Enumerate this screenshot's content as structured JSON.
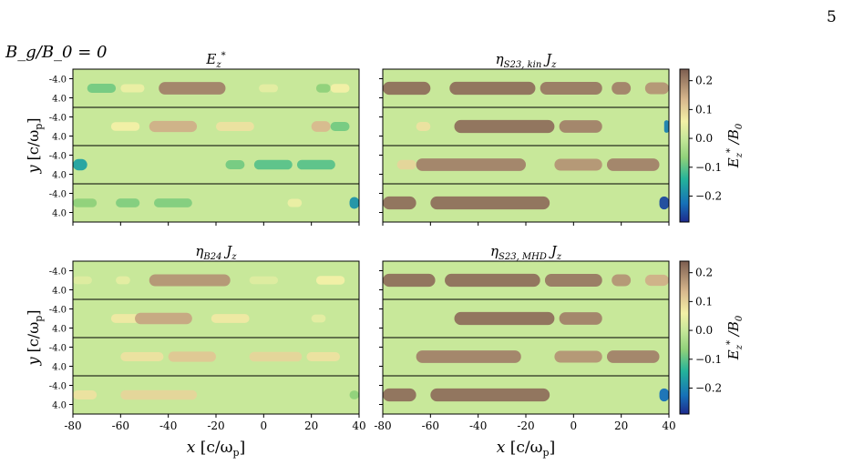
{
  "page": {
    "number": "5",
    "case_label": "B_g/B_0 = 0"
  },
  "chart_data": [
    {
      "type": "heatmap",
      "title": "E_z^*",
      "x": {
        "range": [
          -80,
          40
        ],
        "ticks": [
          -80,
          -60,
          -40,
          -20,
          0,
          20,
          40
        ],
        "label": ""
      },
      "ylabel": "y [c/ω_p]",
      "ytick_labels": [
        "-4.0",
        "4.0"
      ],
      "strips": 4,
      "features": [
        [
          {
            "x0": -74,
            "x1": -62,
            "v": -0.08
          },
          {
            "x0": -60,
            "x1": -50,
            "v": 0.05
          },
          {
            "x0": -44,
            "x1": -16,
            "v": 0.2
          },
          {
            "x0": -2,
            "x1": 6,
            "v": 0.04
          },
          {
            "x0": 22,
            "x1": 28,
            "v": -0.06
          },
          {
            "x0": 28,
            "x1": 36,
            "v": 0.06
          }
        ],
        [
          {
            "x0": -64,
            "x1": -52,
            "v": 0.06
          },
          {
            "x0": -48,
            "x1": -28,
            "v": 0.15
          },
          {
            "x0": -20,
            "x1": -4,
            "v": 0.08
          },
          {
            "x0": 20,
            "x1": 28,
            "v": 0.14
          },
          {
            "x0": 28,
            "x1": 36,
            "v": -0.08
          }
        ],
        [
          {
            "x0": -80,
            "x1": -74,
            "v": -0.16
          },
          {
            "x0": -16,
            "x1": -8,
            "v": -0.08
          },
          {
            "x0": -4,
            "x1": 12,
            "v": -0.1
          },
          {
            "x0": 14,
            "x1": 30,
            "v": -0.1
          }
        ],
        [
          {
            "x0": -80,
            "x1": -70,
            "v": -0.06
          },
          {
            "x0": -62,
            "x1": -52,
            "v": -0.07
          },
          {
            "x0": -46,
            "x1": -30,
            "v": -0.07
          },
          {
            "x0": 10,
            "x1": 16,
            "v": 0.05
          },
          {
            "x0": 36,
            "x1": 40,
            "v": -0.18
          }
        ]
      ]
    },
    {
      "type": "heatmap",
      "title": "η_{S23, kin} J_z",
      "x": {
        "range": [
          -80,
          40
        ],
        "ticks": [
          -80,
          -60,
          -40,
          -20,
          0,
          20,
          40
        ],
        "label": ""
      },
      "features": [
        [
          {
            "x0": -80,
            "x1": -60,
            "v": 0.22
          },
          {
            "x0": -52,
            "x1": -16,
            "v": 0.22
          },
          {
            "x0": -14,
            "x1": 12,
            "v": 0.21
          },
          {
            "x0": 16,
            "x1": 24,
            "v": 0.2
          },
          {
            "x0": 30,
            "x1": 40,
            "v": 0.18
          }
        ],
        [
          {
            "x0": -66,
            "x1": -60,
            "v": 0.08
          },
          {
            "x0": -50,
            "x1": -8,
            "v": 0.22
          },
          {
            "x0": -6,
            "x1": 12,
            "v": 0.2
          },
          {
            "x0": 38,
            "x1": 40,
            "v": -0.2
          }
        ],
        [
          {
            "x0": -74,
            "x1": -66,
            "v": 0.1
          },
          {
            "x0": -66,
            "x1": -20,
            "v": 0.2
          },
          {
            "x0": -8,
            "x1": 12,
            "v": 0.18
          },
          {
            "x0": 14,
            "x1": 36,
            "v": 0.2
          }
        ],
        [
          {
            "x0": -80,
            "x1": -66,
            "v": 0.22
          },
          {
            "x0": -60,
            "x1": -10,
            "v": 0.22
          },
          {
            "x0": 36,
            "x1": 40,
            "v": -0.26
          }
        ]
      ]
    },
    {
      "type": "heatmap",
      "title": "η_{B24} J_z",
      "x": {
        "range": [
          -80,
          40
        ],
        "ticks": [
          -80,
          -60,
          -40,
          -20,
          0,
          20,
          40
        ],
        "label": "x [c/ω_p]"
      },
      "ylabel": "y [c/ω_p]",
      "ytick_labels": [
        "-4.0",
        "4.0"
      ],
      "features": [
        [
          {
            "x0": -80,
            "x1": -72,
            "v": 0.03
          },
          {
            "x0": -62,
            "x1": -56,
            "v": 0.04
          },
          {
            "x0": -48,
            "x1": -14,
            "v": 0.18
          },
          {
            "x0": -6,
            "x1": 6,
            "v": 0.03
          },
          {
            "x0": 22,
            "x1": 34,
            "v": 0.06
          }
        ],
        [
          {
            "x0": -64,
            "x1": -52,
            "v": 0.07
          },
          {
            "x0": -54,
            "x1": -30,
            "v": 0.16
          },
          {
            "x0": -22,
            "x1": -6,
            "v": 0.07
          },
          {
            "x0": 20,
            "x1": 26,
            "v": 0.04
          }
        ],
        [
          {
            "x0": -60,
            "x1": -42,
            "v": 0.08
          },
          {
            "x0": -40,
            "x1": -20,
            "v": 0.12
          },
          {
            "x0": -6,
            "x1": 16,
            "v": 0.1
          },
          {
            "x0": 18,
            "x1": 32,
            "v": 0.08
          }
        ],
        [
          {
            "x0": -80,
            "x1": -70,
            "v": 0.08
          },
          {
            "x0": -60,
            "x1": -28,
            "v": 0.1
          },
          {
            "x0": 36,
            "x1": 40,
            "v": -0.06
          }
        ]
      ]
    },
    {
      "type": "heatmap",
      "title": "η_{S23, MHD} J_z",
      "x": {
        "range": [
          -80,
          40
        ],
        "ticks": [
          -80,
          -60,
          -40,
          -20,
          0,
          20,
          40
        ],
        "label": "x [c/ω_p]"
      },
      "features": [
        [
          {
            "x0": -80,
            "x1": -58,
            "v": 0.22
          },
          {
            "x0": -54,
            "x1": -14,
            "v": 0.22
          },
          {
            "x0": -12,
            "x1": 12,
            "v": 0.21
          },
          {
            "x0": 16,
            "x1": 24,
            "v": 0.18
          },
          {
            "x0": 30,
            "x1": 40,
            "v": 0.15
          }
        ],
        [
          {
            "x0": -50,
            "x1": -8,
            "v": 0.22
          },
          {
            "x0": -6,
            "x1": 12,
            "v": 0.2
          }
        ],
        [
          {
            "x0": -66,
            "x1": -22,
            "v": 0.2
          },
          {
            "x0": -8,
            "x1": 12,
            "v": 0.18
          },
          {
            "x0": 14,
            "x1": 36,
            "v": 0.2
          }
        ],
        [
          {
            "x0": -80,
            "x1": -66,
            "v": 0.22
          },
          {
            "x0": -60,
            "x1": -10,
            "v": 0.22
          },
          {
            "x0": 36,
            "x1": 40,
            "v": -0.22
          }
        ]
      ]
    }
  ],
  "colorbars": [
    {
      "label": "E_z^* / B_0",
      "ticks": [
        "0.2",
        "0.1",
        "0.0",
        "−0.1",
        "−0.2"
      ],
      "tick_values": [
        0.2,
        0.1,
        0.0,
        -0.1,
        -0.2
      ],
      "range": [
        -0.29,
        0.24
      ]
    },
    {
      "label": "E_z^* / B_0",
      "ticks": [
        "0.2",
        "0.1",
        "0.0",
        "−0.1",
        "−0.2"
      ],
      "tick_values": [
        0.2,
        0.1,
        0.0,
        -0.1,
        -0.2
      ],
      "range": [
        -0.29,
        0.24
      ]
    }
  ],
  "colors": {
    "background_zero": "#c8e89a",
    "positive": "#8b6a55",
    "negative": "#1a3a9e"
  }
}
